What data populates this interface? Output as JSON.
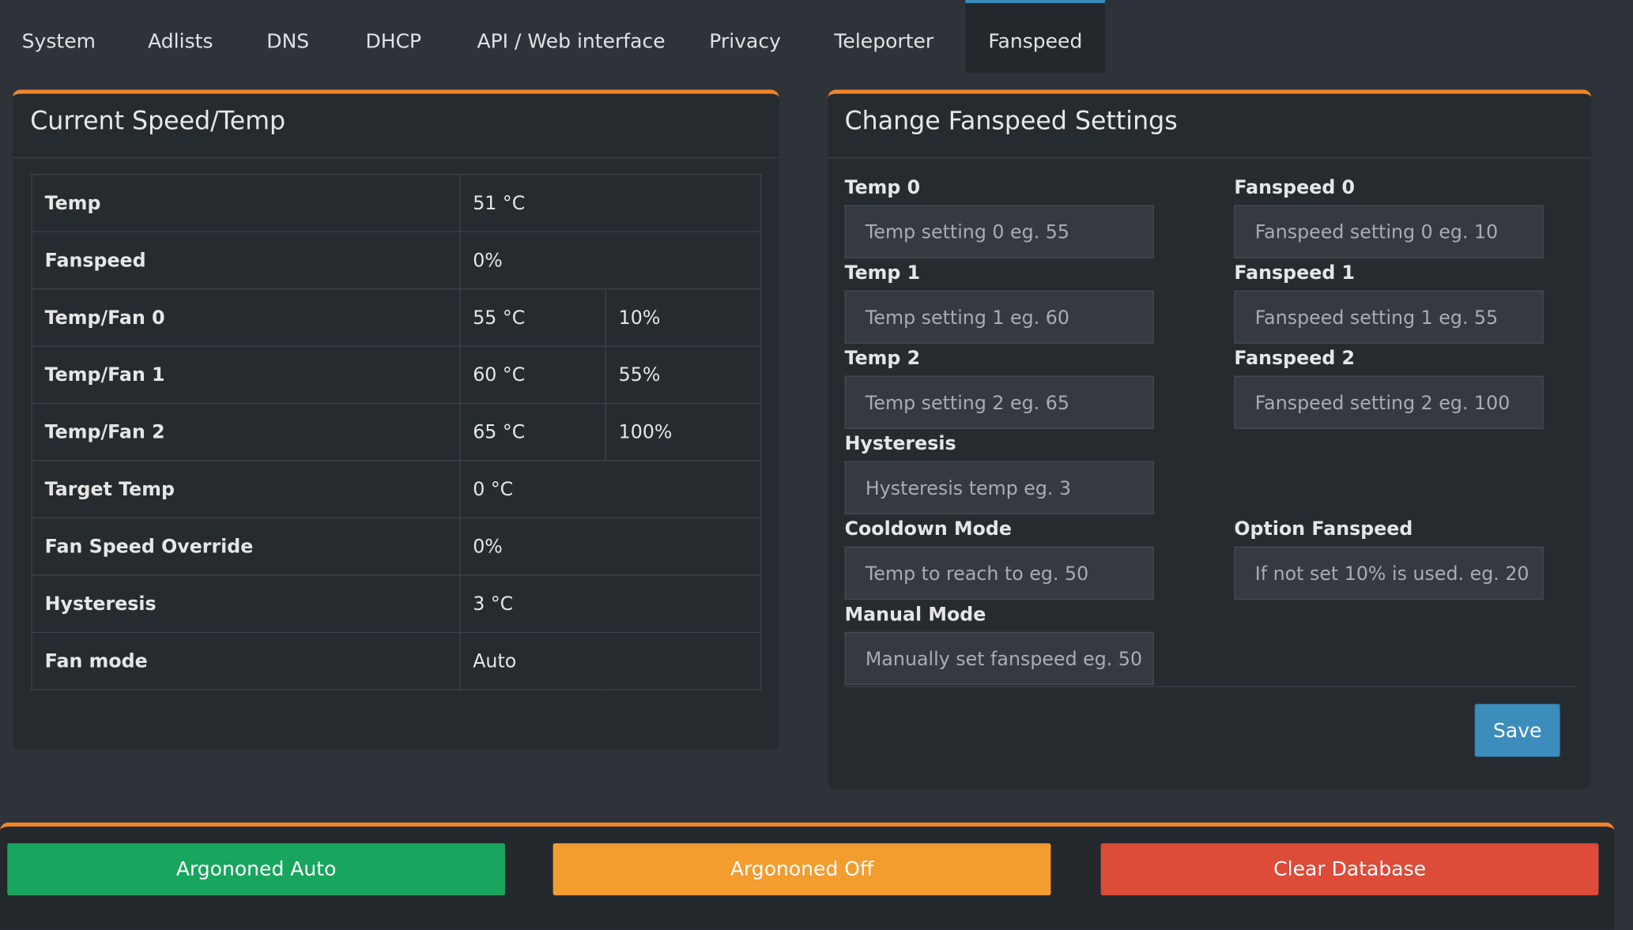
{
  "tabs": {
    "items": [
      "System",
      "Adlists",
      "DNS",
      "DHCP",
      "API / Web interface",
      "Privacy",
      "Teleporter",
      "Fanspeed"
    ],
    "active": 7
  },
  "current": {
    "title": "Current Speed/Temp",
    "rows": [
      [
        "Temp",
        "51 °C"
      ],
      [
        "Fanspeed",
        "0%"
      ],
      [
        "Temp/Fan 0",
        "55 °C",
        "10%"
      ],
      [
        "Temp/Fan 1",
        "60 °C",
        "55%"
      ],
      [
        "Temp/Fan 2",
        "65 °C",
        "100%"
      ],
      [
        "Target Temp",
        "0 °C"
      ],
      [
        "Fan Speed Override",
        "0%"
      ],
      [
        "Hysteresis",
        "3 °C"
      ],
      [
        "Fan mode",
        "Auto"
      ]
    ]
  },
  "settings": {
    "title": "Change Fanspeed Settings",
    "left_fields": [
      {
        "label": "Temp 0",
        "placeholder": "Temp setting 0 eg. 55"
      },
      {
        "label": "Temp 1",
        "placeholder": "Temp setting 1 eg. 60"
      },
      {
        "label": "Temp 2",
        "placeholder": "Temp setting 2 eg. 65"
      },
      {
        "label": "Hysteresis",
        "placeholder": "Hysteresis temp eg. 3"
      },
      {
        "label": "Cooldown Mode",
        "placeholder": "Temp to reach to eg. 50"
      },
      {
        "label": "Manual Mode",
        "placeholder": "Manually set fanspeed eg. 50"
      }
    ],
    "right_fields": [
      {
        "label": "Fanspeed 0",
        "placeholder": "Fanspeed setting 0 eg. 10"
      },
      {
        "label": "Fanspeed 1",
        "placeholder": "Fanspeed setting 1 eg. 55"
      },
      {
        "label": "Fanspeed 2",
        "placeholder": "Fanspeed setting 2 eg. 100"
      },
      {
        "label": "Option Fanspeed",
        "placeholder": "If not set 10% is used. eg. 20"
      }
    ],
    "save": "Save"
  },
  "actions": [
    "Argononed Auto",
    "Argononed Off",
    "Clear Database"
  ]
}
